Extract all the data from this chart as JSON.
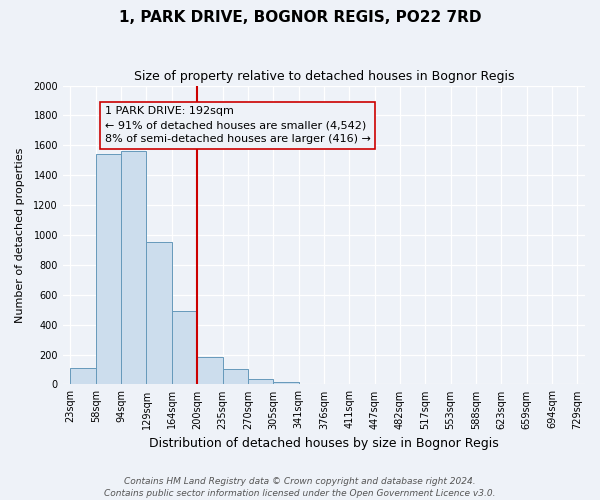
{
  "title": "1, PARK DRIVE, BOGNOR REGIS, PO22 7RD",
  "subtitle": "Size of property relative to detached houses in Bognor Regis",
  "xlabel": "Distribution of detached houses by size in Bognor Regis",
  "ylabel": "Number of detached properties",
  "bar_values": [
    110,
    1540,
    1560,
    950,
    490,
    185,
    100,
    35,
    15,
    0,
    0,
    0,
    0,
    0,
    0,
    0,
    0,
    0,
    0,
    0
  ],
  "bin_labels": [
    "23sqm",
    "58sqm",
    "94sqm",
    "129sqm",
    "164sqm",
    "200sqm",
    "235sqm",
    "270sqm",
    "305sqm",
    "341sqm",
    "376sqm",
    "411sqm",
    "447sqm",
    "482sqm",
    "517sqm",
    "553sqm",
    "588sqm",
    "623sqm",
    "659sqm",
    "694sqm",
    "729sqm"
  ],
  "vline_bin_index": 5,
  "annotation_line1": "1 PARK DRIVE: 192sqm",
  "annotation_line2": "← 91% of detached houses are smaller (4,542)",
  "annotation_line3": "8% of semi-detached houses are larger (416) →",
  "bar_color": "#ccdded",
  "bar_edge_color": "#6699bb",
  "vline_color": "#cc0000",
  "annotation_box_edge_color": "#cc0000",
  "ylim": [
    0,
    2000
  ],
  "yticks": [
    0,
    200,
    400,
    600,
    800,
    1000,
    1200,
    1400,
    1600,
    1800,
    2000
  ],
  "footer_line1": "Contains HM Land Registry data © Crown copyright and database right 2024.",
  "footer_line2": "Contains public sector information licensed under the Open Government Licence v3.0.",
  "background_color": "#eef2f8",
  "grid_color": "#ffffff",
  "title_fontsize": 11,
  "subtitle_fontsize": 9,
  "xlabel_fontsize": 9,
  "ylabel_fontsize": 8,
  "tick_fontsize": 7,
  "annotation_fontsize": 8,
  "footer_fontsize": 6.5
}
